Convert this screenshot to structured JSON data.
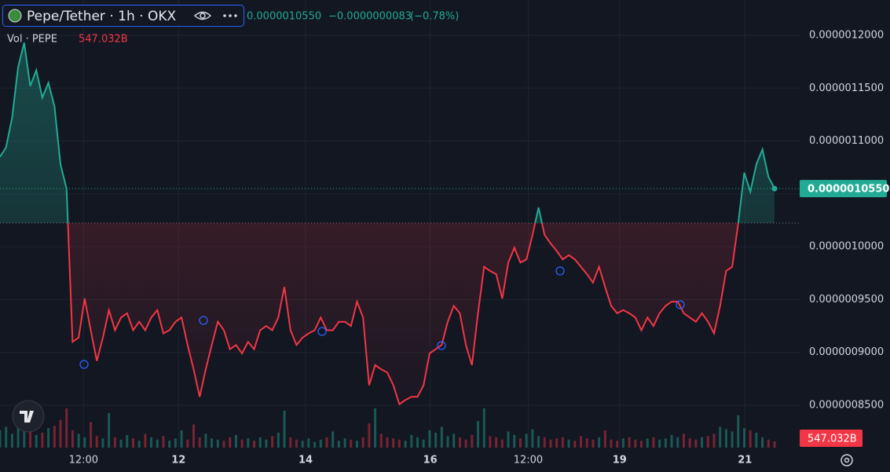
{
  "chart_data": {
    "type": "baseline",
    "title": "Pepe/Tether · 1h · OKX",
    "price_label": "0.0000010550",
    "change_label": "−0.0000000083",
    "change_pct_label": "(−0.78%)",
    "volume_title": "Vol · PEPE",
    "volume_label": "547.032B",
    "up_color": "#22ab94",
    "down_color": "#f23645",
    "grid": true,
    "baseline": 1.0224e-06,
    "ylim": [
      8.099e-07,
      1.2334e-06
    ],
    "yticks": [
      {
        "value": 1.2e-06,
        "label": "0.0000012000"
      },
      {
        "value": 1.15e-06,
        "label": "0.0000011500"
      },
      {
        "value": 1.1e-06,
        "label": "0.0000011000"
      },
      {
        "value": 1.05e-06,
        "label": "0.0000010500"
      },
      {
        "value": 1e-06,
        "label": "0.0000010000"
      },
      {
        "value": 9.5e-07,
        "label": "0.0000009500"
      },
      {
        "value": 9e-07,
        "label": "0.0000009000"
      },
      {
        "value": 8.5e-07,
        "label": "0.0000008500"
      }
    ],
    "xticks": [
      {
        "value": 13.8,
        "label": "12:00"
      },
      {
        "value": 29.5,
        "label": "12"
      },
      {
        "value": 50.5,
        "label": "14"
      },
      {
        "value": 71.1,
        "label": "16"
      },
      {
        "value": 87.3,
        "label": "12:00"
      },
      {
        "value": 102.4,
        "label": "19"
      },
      {
        "value": 123.1,
        "label": "21"
      }
    ],
    "values": [
      1.085e-06,
      1.094e-06,
      1.122e-06,
      1.17e-06,
      1.193e-06,
      1.152e-06,
      1.167e-06,
      1.141e-06,
      1.155e-06,
      1.133e-06,
      1.078e-06,
      1.055e-06,
      9.1e-07,
      9.14e-07,
      9.51e-07,
      9.21e-07,
      8.92e-07,
      9.14e-07,
      9.4e-07,
      9.21e-07,
      9.33e-07,
      9.37e-07,
      9.21e-07,
      9.29e-07,
      9.21e-07,
      9.33e-07,
      9.4e-07,
      9.18e-07,
      9.21e-07,
      9.29e-07,
      9.33e-07,
      9.07e-07,
      8.84e-07,
      8.58e-07,
      8.84e-07,
      9.07e-07,
      9.29e-07,
      9.21e-07,
      9.03e-07,
      9.07e-07,
      8.99e-07,
      9.1e-07,
      9.03e-07,
      9.21e-07,
      9.25e-07,
      9.21e-07,
      9.33e-07,
      9.62e-07,
      9.21e-07,
      9.07e-07,
      9.14e-07,
      9.18e-07,
      9.21e-07,
      9.33e-07,
      9.21e-07,
      9.21e-07,
      9.29e-07,
      9.29e-07,
      9.25e-07,
      9.48e-07,
      9.33e-07,
      8.69e-07,
      8.88e-07,
      8.84e-07,
      8.81e-07,
      8.69e-07,
      8.51e-07,
      8.55e-07,
      8.58e-07,
      8.58e-07,
      8.69e-07,
      8.99e-07,
      9.03e-07,
      9.07e-07,
      9.29e-07,
      9.44e-07,
      9.37e-07,
      9.07e-07,
      8.88e-07,
      9.37e-07,
      9.81e-07,
      9.77e-07,
      9.74e-07,
      9.51e-07,
      9.85e-07,
      9.99e-07,
      9.85e-07,
      9.88e-07,
      1.011e-06,
      1.037e-06,
      1.011e-06,
      1.003e-06,
      9.96e-07,
      9.88e-07,
      9.92e-07,
      9.88e-07,
      9.81e-07,
      9.74e-07,
      9.66e-07,
      9.81e-07,
      9.62e-07,
      9.44e-07,
      9.37e-07,
      9.4e-07,
      9.37e-07,
      9.33e-07,
      9.21e-07,
      9.33e-07,
      9.25e-07,
      9.37e-07,
      9.44e-07,
      9.48e-07,
      9.48e-07,
      9.37e-07,
      9.33e-07,
      9.29e-07,
      9.37e-07,
      9.29e-07,
      9.18e-07,
      9.44e-07,
      9.77e-07,
      9.81e-07,
      1.022e-06,
      1.07e-06,
      1.052e-06,
      1.078e-06,
      1.092e-06,
      1.066e-06,
      1.055e-06
    ],
    "volume": [
      1500,
      1800,
      1200,
      2000,
      1600,
      1400,
      1100,
      1300,
      1700,
      1900,
      2400,
      3400,
      1500,
      1200,
      900,
      2200,
      1000,
      800,
      3000,
      900,
      700,
      1100,
      800,
      600,
      1200,
      900,
      700,
      1000,
      600,
      800,
      1500,
      700,
      2000,
      900,
      1200,
      800,
      700,
      600,
      900,
      1100,
      700,
      800,
      600,
      900,
      700,
      1000,
      1300,
      3200,
      900,
      700,
      600,
      800,
      500,
      700,
      900,
      1400,
      600,
      800,
      700,
      600,
      900,
      2100,
      3400,
      1200,
      900,
      800,
      700,
      600,
      1100,
      900,
      700,
      1500,
      1300,
      1800,
      1000,
      1200,
      900,
      700,
      1100,
      2300,
      3400,
      1000,
      900,
      700,
      1400,
      1100,
      800,
      1200,
      1600,
      1000,
      900,
      700,
      800,
      900,
      700,
      600,
      1000,
      800,
      700,
      900,
      1500,
      700,
      600,
      800,
      900,
      700,
      600,
      800,
      900,
      700,
      800,
      1100,
      900,
      1200,
      800,
      700,
      900,
      1000,
      1200,
      1800,
      1600,
      1400,
      2800,
      1700,
      1500,
      1300,
      900,
      700,
      547.032
    ]
  }
}
